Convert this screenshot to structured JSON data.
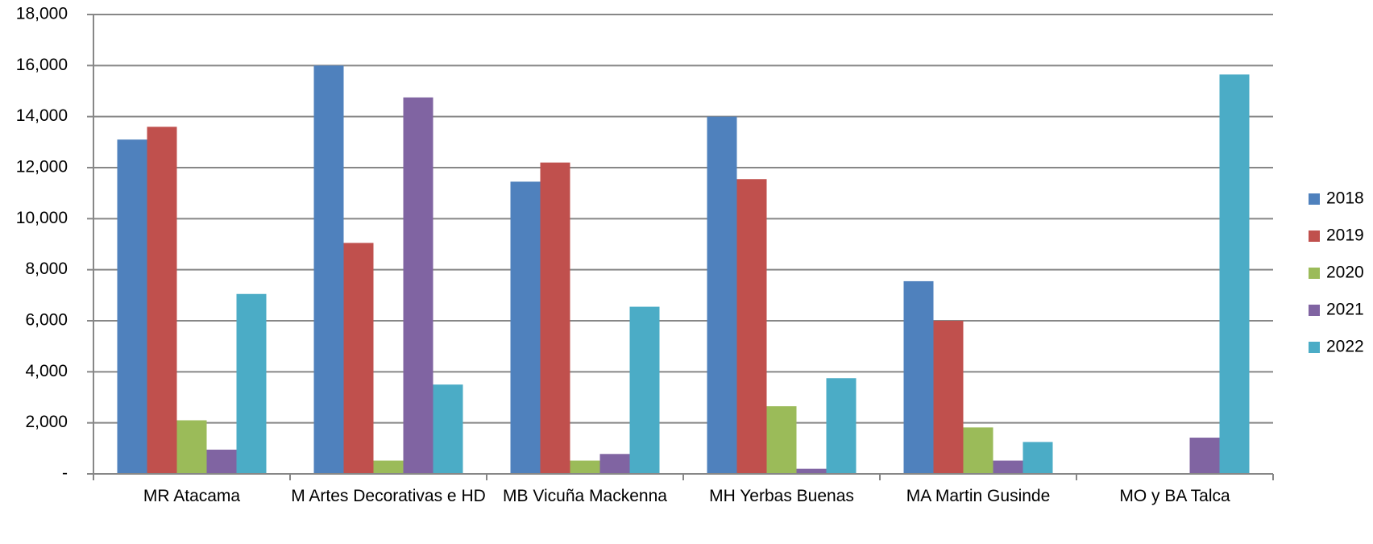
{
  "chart_data": {
    "type": "bar",
    "categories": [
      "MR Atacama",
      "M Artes Decorativas e HD",
      "MB Vicuña Mackenna",
      "MH Yerbas Buenas",
      "MA Martin Gusinde",
      "MO y BA Talca"
    ],
    "series": [
      {
        "name": "2018",
        "color": "#4f81bd",
        "values": [
          13100,
          16000,
          11450,
          14000,
          7550,
          null
        ]
      },
      {
        "name": "2019",
        "color": "#c0504d",
        "values": [
          13600,
          9050,
          12200,
          11550,
          6000,
          null
        ]
      },
      {
        "name": "2020",
        "color": "#9bbb59",
        "values": [
          2100,
          520,
          520,
          2650,
          1820,
          null
        ]
      },
      {
        "name": "2021",
        "color": "#8064a2",
        "values": [
          950,
          14750,
          780,
          200,
          520,
          1420
        ]
      },
      {
        "name": "2022",
        "color": "#4bacc6",
        "values": [
          7050,
          3500,
          6550,
          3750,
          1250,
          15650
        ]
      }
    ],
    "ylim": [
      0,
      18000
    ],
    "yticks": [
      {
        "value": 0,
        "label": "-"
      },
      {
        "value": 2000,
        "label": "2,000"
      },
      {
        "value": 4000,
        "label": "4,000"
      },
      {
        "value": 6000,
        "label": "6,000"
      },
      {
        "value": 8000,
        "label": "8,000"
      },
      {
        "value": 10000,
        "label": "10,000"
      },
      {
        "value": 12000,
        "label": "12,000"
      },
      {
        "value": 14000,
        "label": "14,000"
      },
      {
        "value": 16000,
        "label": "16,000"
      },
      {
        "value": 18000,
        "label": "18,000"
      }
    ],
    "grid": true,
    "legend": "right"
  }
}
